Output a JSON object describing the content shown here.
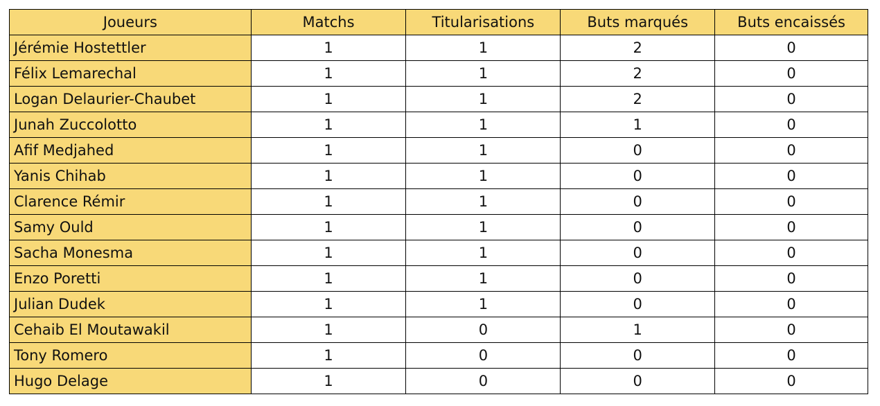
{
  "table": {
    "headers": [
      "Joueurs",
      "Matchs",
      "Titularisations",
      "Buts marqués",
      "Buts encaissés"
    ],
    "rows": [
      [
        "Jérémie Hostettler",
        "1",
        "1",
        "2",
        "0"
      ],
      [
        "Félix Lemarechal",
        "1",
        "1",
        "2",
        "0"
      ],
      [
        "Logan Delaurier-Chaubet",
        "1",
        "1",
        "2",
        "0"
      ],
      [
        "Junah Zuccolotto",
        "1",
        "1",
        "1",
        "0"
      ],
      [
        "Afif Medjahed",
        "1",
        "1",
        "0",
        "0"
      ],
      [
        "Yanis Chihab",
        "1",
        "1",
        "0",
        "0"
      ],
      [
        "Clarence Rémir",
        "1",
        "1",
        "0",
        "0"
      ],
      [
        "Samy Ould",
        "1",
        "1",
        "0",
        "0"
      ],
      [
        "Sacha Monesma",
        "1",
        "1",
        "0",
        "0"
      ],
      [
        "Enzo Poretti",
        "1",
        "1",
        "0",
        "0"
      ],
      [
        "Julian Dudek",
        "1",
        "1",
        "0",
        "0"
      ],
      [
        "Cehaib El Moutawakil",
        "1",
        "0",
        "1",
        "0"
      ],
      [
        "Tony Romero",
        "1",
        "0",
        "0",
        "0"
      ],
      [
        "Hugo Delage",
        "1",
        "0",
        "0",
        "0"
      ]
    ],
    "header_color": "#F8D978"
  }
}
